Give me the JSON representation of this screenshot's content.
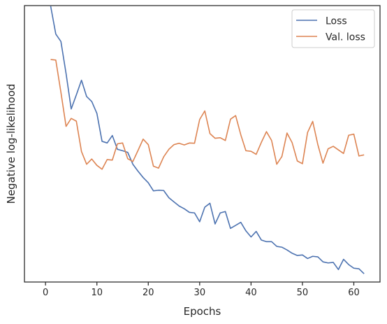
{
  "chart_data": {
    "type": "line",
    "title": "",
    "xlabel": "Epochs",
    "ylabel": "Negative log-likelihood",
    "xlim": [
      -4.1,
      65.1
    ],
    "ylim": [
      0,
      100
    ],
    "y_tick_labels_shown": false,
    "x_ticks": [
      0,
      10,
      20,
      30,
      40,
      50,
      60
    ],
    "x_tick_labels": [
      "0",
      "10",
      "20",
      "30",
      "40",
      "50",
      "60"
    ],
    "grid": false,
    "legend_position": "top-right",
    "x": [
      1,
      2,
      3,
      4,
      5,
      6,
      7,
      8,
      9,
      10,
      11,
      12,
      13,
      14,
      15,
      16,
      17,
      18,
      19,
      20,
      21,
      22,
      23,
      24,
      25,
      26,
      27,
      28,
      29,
      30,
      31,
      32,
      33,
      34,
      35,
      36,
      37,
      38,
      39,
      40,
      41,
      42,
      43,
      44,
      45,
      46,
      47,
      48,
      49,
      50,
      51,
      52,
      53,
      54,
      55,
      56,
      57,
      58,
      59,
      60,
      61,
      62
    ],
    "series": [
      {
        "name": "Loss",
        "color": "#4c72b0",
        "values": [
          99.8,
          89.7,
          87.0,
          75.4,
          62.6,
          67.7,
          73.0,
          67.1,
          65.3,
          61.0,
          50.9,
          50.3,
          53.0,
          48.0,
          47.5,
          46.9,
          42.6,
          40.1,
          37.8,
          35.9,
          33.0,
          33.2,
          33.1,
          30.5,
          29.0,
          27.5,
          26.5,
          25.2,
          25.0,
          21.8,
          27.1,
          28.5,
          21.0,
          25.0,
          25.5,
          19.4,
          20.5,
          21.6,
          18.5,
          16.3,
          18.3,
          15.2,
          14.6,
          14.6,
          12.9,
          12.6,
          11.6,
          10.4,
          9.6,
          9.8,
          8.5,
          9.3,
          9.1,
          7.3,
          6.9,
          7.1,
          4.5,
          8.2,
          6.3,
          5.0,
          4.8,
          3.0
        ]
      },
      {
        "name": "Val. loss",
        "color": "#dd8452",
        "values": [
          80.5,
          80.3,
          68.6,
          56.3,
          59.2,
          58.2,
          47.2,
          42.6,
          44.5,
          42.2,
          40.8,
          44.3,
          44.1,
          50.0,
          50.3,
          44.6,
          43.6,
          47.6,
          51.7,
          49.7,
          41.9,
          41.2,
          45.3,
          48.0,
          49.7,
          50.2,
          49.6,
          50.3,
          50.2,
          58.8,
          61.9,
          53.7,
          52.0,
          52.2,
          51.2,
          58.9,
          60.2,
          53.3,
          47.5,
          47.3,
          46.2,
          50.5,
          54.4,
          51.2,
          42.6,
          45.4,
          53.9,
          50.4,
          43.8,
          42.8,
          54.1,
          58.1,
          49.7,
          43.0,
          48.2,
          49.1,
          47.8,
          46.5,
          53.1,
          53.5,
          45.6,
          46.0
        ]
      }
    ]
  }
}
